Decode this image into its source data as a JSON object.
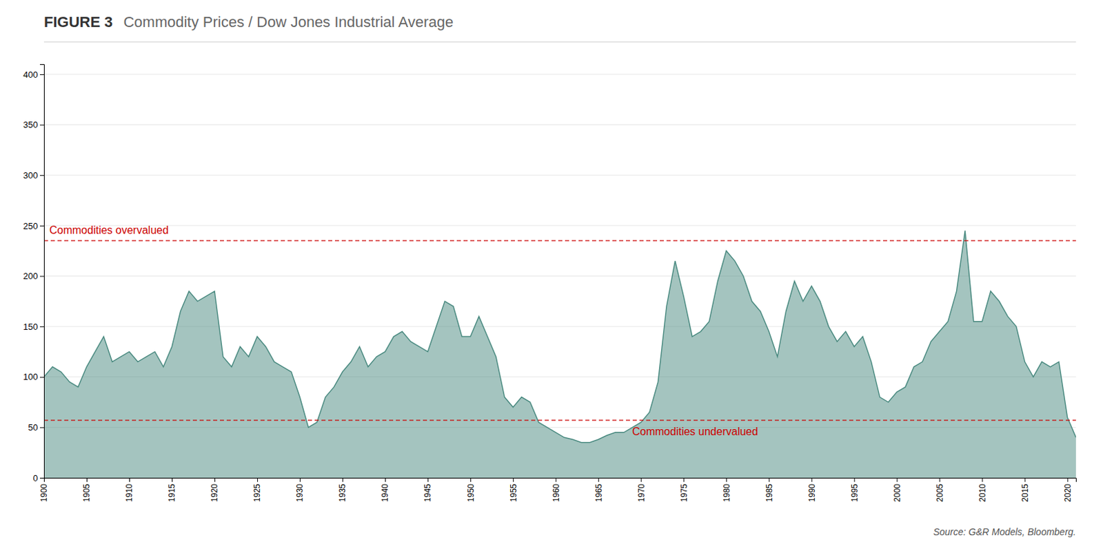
{
  "chart_data": {
    "type": "area",
    "title": "FIGURE 3",
    "subtitle": "Commodity Prices / Dow Jones Industrial Average",
    "x": [
      1900,
      1901,
      1902,
      1903,
      1904,
      1905,
      1906,
      1907,
      1908,
      1909,
      1910,
      1911,
      1912,
      1913,
      1914,
      1915,
      1916,
      1917,
      1918,
      1919,
      1920,
      1921,
      1922,
      1923,
      1924,
      1925,
      1926,
      1927,
      1928,
      1929,
      1930,
      1931,
      1932,
      1933,
      1934,
      1935,
      1936,
      1937,
      1938,
      1939,
      1940,
      1941,
      1942,
      1943,
      1944,
      1945,
      1946,
      1947,
      1948,
      1949,
      1950,
      1951,
      1952,
      1953,
      1954,
      1955,
      1956,
      1957,
      1958,
      1959,
      1960,
      1961,
      1962,
      1963,
      1964,
      1965,
      1966,
      1967,
      1968,
      1969,
      1970,
      1971,
      1972,
      1973,
      1974,
      1975,
      1976,
      1977,
      1978,
      1979,
      1980,
      1981,
      1982,
      1983,
      1984,
      1985,
      1986,
      1987,
      1988,
      1989,
      1990,
      1991,
      1992,
      1993,
      1994,
      1995,
      1996,
      1997,
      1998,
      1999,
      2000,
      2001,
      2002,
      2003,
      2004,
      2005,
      2006,
      2007,
      2008,
      2009,
      2010,
      2011,
      2012,
      2013,
      2014,
      2015,
      2016,
      2017,
      2018,
      2019,
      2020,
      2021
    ],
    "values": [
      100,
      110,
      105,
      95,
      90,
      110,
      125,
      140,
      115,
      120,
      125,
      115,
      120,
      125,
      110,
      130,
      165,
      185,
      175,
      180,
      185,
      120,
      110,
      130,
      120,
      140,
      130,
      115,
      110,
      105,
      80,
      50,
      55,
      80,
      90,
      105,
      115,
      130,
      110,
      120,
      125,
      140,
      145,
      135,
      130,
      125,
      150,
      175,
      170,
      140,
      140,
      160,
      140,
      120,
      80,
      70,
      80,
      75,
      55,
      50,
      45,
      40,
      38,
      35,
      35,
      38,
      42,
      45,
      45,
      50,
      55,
      65,
      95,
      170,
      215,
      180,
      140,
      145,
      155,
      195,
      225,
      215,
      200,
      175,
      165,
      145,
      120,
      165,
      195,
      175,
      190,
      175,
      150,
      135,
      145,
      130,
      140,
      115,
      80,
      75,
      85,
      90,
      110,
      115,
      135,
      145,
      155,
      185,
      245,
      155,
      155,
      185,
      175,
      160,
      150,
      115,
      100,
      115,
      110,
      115,
      60,
      40
    ],
    "color": "#4a8a80",
    "xlim": [
      1900,
      2021
    ],
    "xticks": [
      1900,
      1905,
      1910,
      1915,
      1920,
      1925,
      1930,
      1935,
      1940,
      1945,
      1950,
      1955,
      1960,
      1965,
      1970,
      1975,
      1980,
      1985,
      1990,
      1995,
      2000,
      2005,
      2010,
      2015,
      2020
    ],
    "ylim": [
      0,
      410
    ],
    "yticks": [
      0,
      50,
      100,
      150,
      200,
      250,
      300,
      350,
      400
    ],
    "grid": true,
    "annotations": [
      {
        "text": "Commodities overvalued",
        "y": 235,
        "color": "#cc0000"
      },
      {
        "text": "Commodities undervalued",
        "y": 57,
        "color": "#cc0000"
      },
      {
        "text": "Source: G&R Models, Bloomberg."
      }
    ]
  }
}
